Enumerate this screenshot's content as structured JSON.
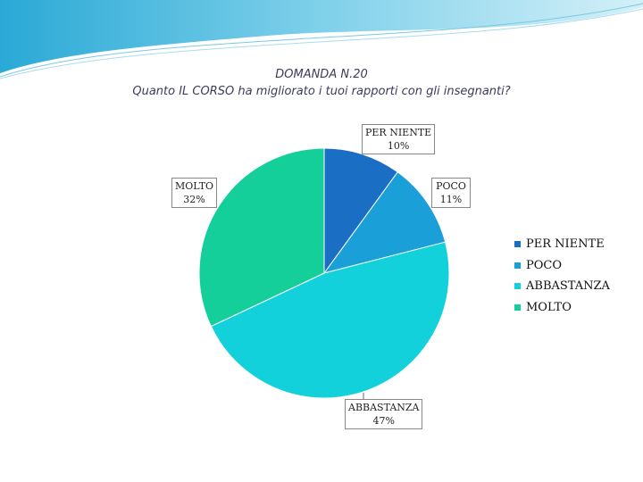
{
  "chart_data": {
    "type": "pie",
    "title": "DOMANDA N.20",
    "subtitle": "Quanto IL CORSO ha migliorato i tuoi rapporti con gli insegnanti?",
    "categories": [
      "PER NIENTE",
      "POCO",
      "ABBASTANZA",
      "MOLTO"
    ],
    "values": [
      10,
      11,
      47,
      32
    ],
    "value_labels": [
      "10%",
      "11%",
      "47%",
      "32%"
    ],
    "colors": [
      "#1a6fc4",
      "#1b9fd8",
      "#13d1db",
      "#15cf9a"
    ],
    "legend": "right"
  }
}
